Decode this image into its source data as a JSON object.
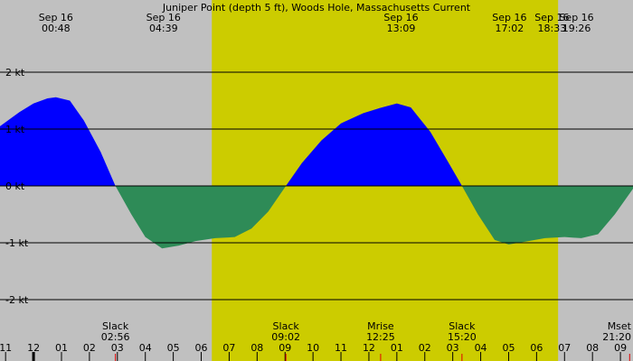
{
  "chart_data": {
    "type": "area",
    "title": "Juniper Point (depth 5 ft), Woods Hole, Massachusetts Current",
    "background_color": "#c0c0c0",
    "daylight_color": "#cccc00",
    "daylight": [
      6.38,
      18.77
    ],
    "flood_color": "#0000ff",
    "ebb_color": "#2e8b57",
    "xlim": [
      -1.2,
      21.45
    ],
    "ylim": [
      -3.08,
      3.27
    ],
    "yticks": [
      {
        "value": 2,
        "label": "2 kt"
      },
      {
        "value": 1,
        "label": "1 kt"
      },
      {
        "value": 0,
        "label": "0 kt"
      },
      {
        "value": -1,
        "label": "-1 kt"
      },
      {
        "value": -2,
        "label": "-2 kt"
      }
    ],
    "xticks": [
      {
        "value": -1,
        "label": "11"
      },
      {
        "value": 0,
        "label": "12"
      },
      {
        "value": 1,
        "label": "01"
      },
      {
        "value": 2,
        "label": "02"
      },
      {
        "value": 3,
        "label": "03"
      },
      {
        "value": 4,
        "label": "04"
      },
      {
        "value": 5,
        "label": "05"
      },
      {
        "value": 6,
        "label": "06"
      },
      {
        "value": 7,
        "label": "07"
      },
      {
        "value": 8,
        "label": "08"
      },
      {
        "value": 9,
        "label": "09"
      },
      {
        "value": 10,
        "label": "10"
      },
      {
        "value": 11,
        "label": "11"
      },
      {
        "value": 12,
        "label": "12"
      },
      {
        "value": 13,
        "label": "01"
      },
      {
        "value": 14,
        "label": "02"
      },
      {
        "value": 15,
        "label": "03"
      },
      {
        "value": 16,
        "label": "04"
      },
      {
        "value": 17,
        "label": "05"
      },
      {
        "value": 18,
        "label": "06"
      },
      {
        "value": 19,
        "label": "07"
      },
      {
        "value": 20,
        "label": "08"
      },
      {
        "value": 21,
        "label": "09"
      }
    ],
    "top_events": [
      {
        "date": "Sep 16",
        "time": "00:48",
        "hour": 0.8
      },
      {
        "date": "Sep 16",
        "time": "04:39",
        "hour": 4.65
      },
      {
        "date": "Sep 16",
        "time": "13:09",
        "hour": 13.15
      },
      {
        "date": "Sep 16",
        "time": "17:02",
        "hour": 17.03
      },
      {
        "date": "Sep 16",
        "time": "18:33",
        "hour": 18.55
      },
      {
        "date": "Sep 16",
        "time": "19:26",
        "hour": 19.43
      }
    ],
    "bottom_events": [
      {
        "label": "Slack",
        "time": "02:56",
        "hour": 2.93
      },
      {
        "label": "Slack",
        "time": "09:02",
        "hour": 9.03
      },
      {
        "label": "Mrise",
        "time": "12:25",
        "hour": 12.42
      },
      {
        "label": "Slack",
        "time": "15:20",
        "hour": 15.33
      },
      {
        "label": "Mset",
        "time": "21:20",
        "hour": 21.33
      }
    ],
    "x": [
      -1.2,
      -0.5,
      0,
      0.5,
      0.8,
      1.3,
      1.8,
      2.4,
      2.93,
      3.5,
      4.0,
      4.6,
      5.2,
      5.8,
      6.5,
      7.2,
      7.8,
      8.4,
      9.03,
      9.6,
      10.3,
      11.0,
      11.8,
      12.4,
      13.0,
      13.5,
      14.2,
      14.8,
      15.33,
      15.9,
      16.5,
      17.0,
      17.6,
      18.3,
      19.0,
      19.6,
      20.2,
      20.8,
      21.45
    ],
    "values": [
      1.05,
      1.3,
      1.45,
      1.54,
      1.56,
      1.5,
      1.15,
      0.6,
      0,
      -0.5,
      -0.9,
      -1.1,
      -1.05,
      -0.97,
      -0.92,
      -0.9,
      -0.75,
      -0.45,
      0,
      0.4,
      0.8,
      1.1,
      1.28,
      1.37,
      1.45,
      1.38,
      0.95,
      0.45,
      0,
      -0.5,
      -0.95,
      -1.03,
      -0.98,
      -0.92,
      -0.9,
      -0.92,
      -0.85,
      -0.5,
      -0.05
    ]
  }
}
